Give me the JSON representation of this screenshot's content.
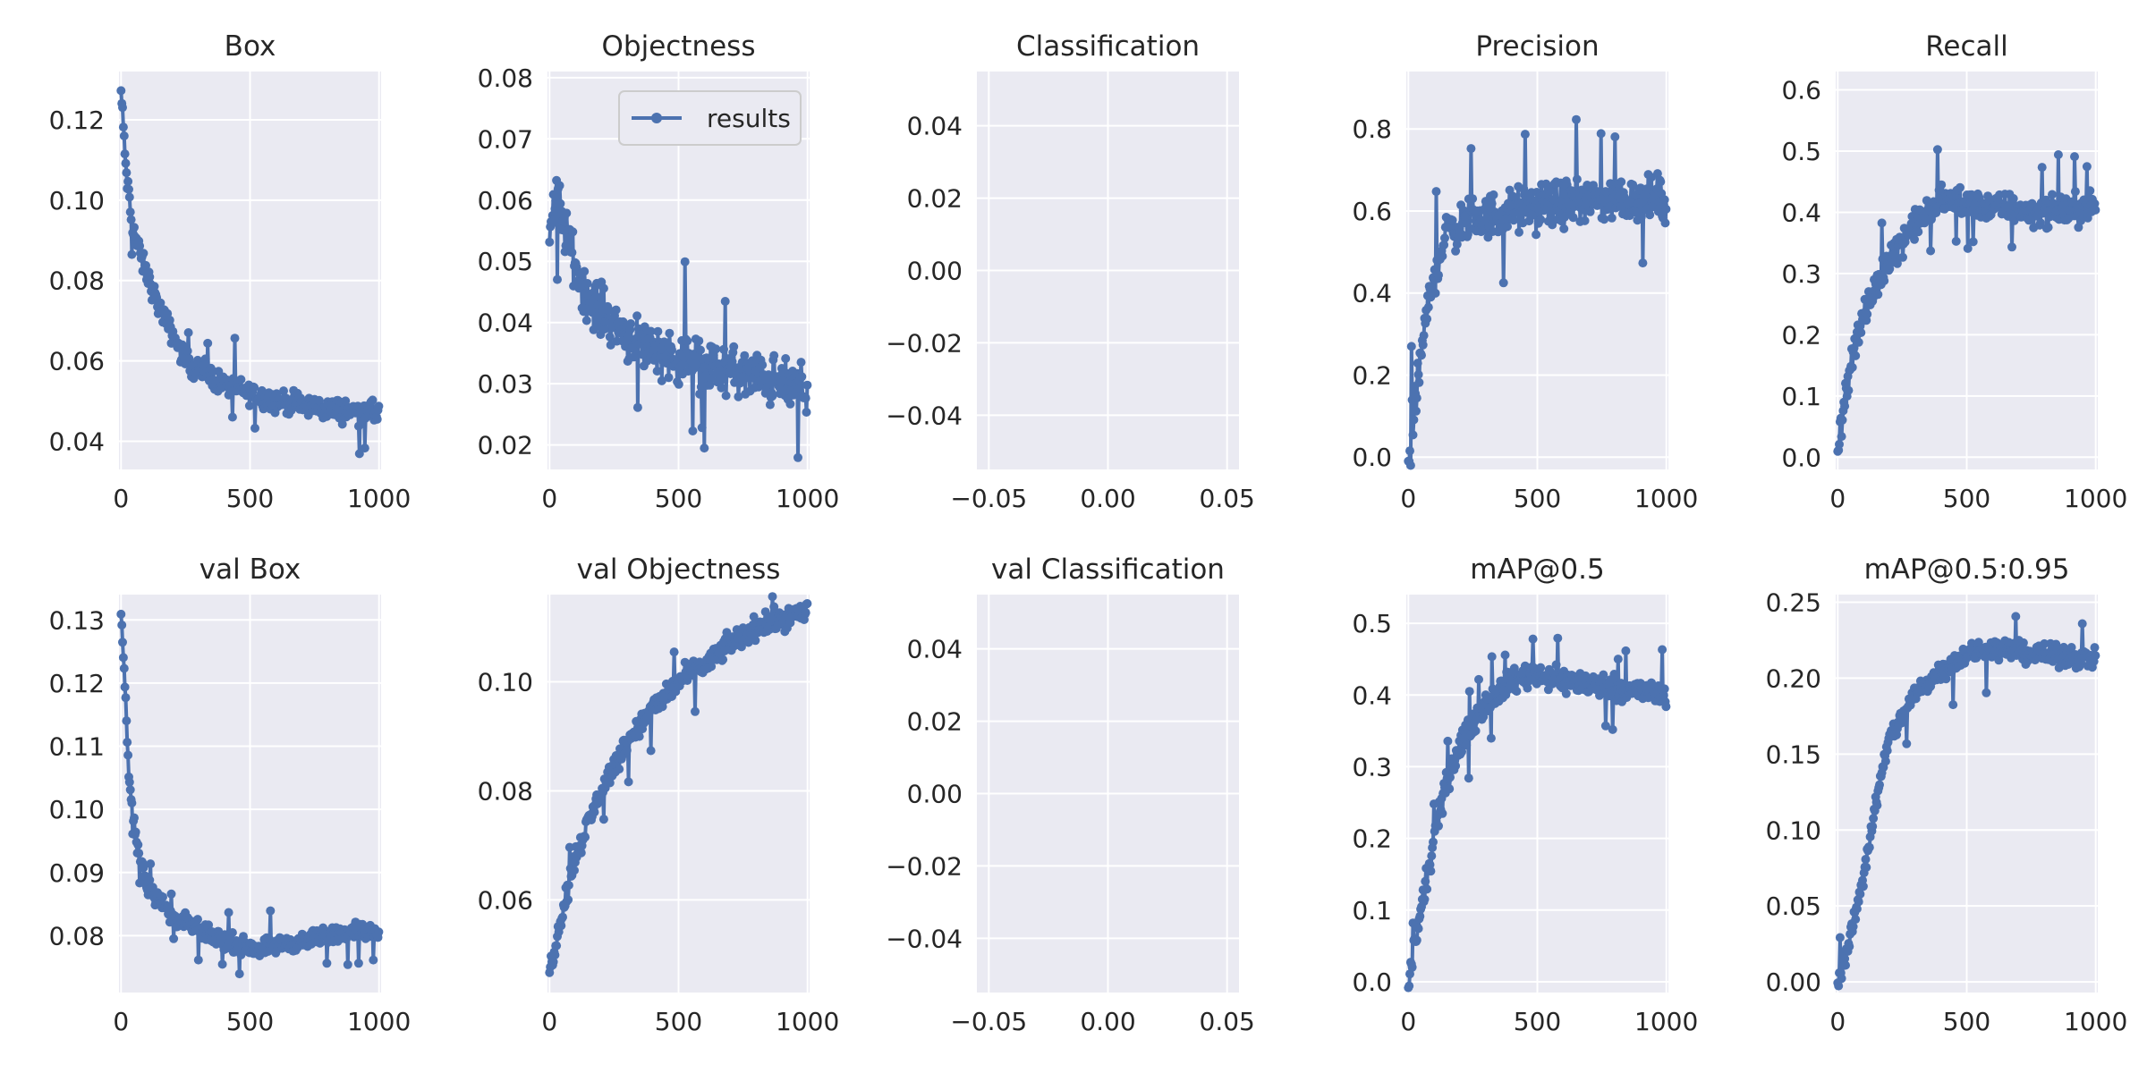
{
  "figure": {
    "background": "#ffffff",
    "axes_facecolor": "#eaeaf2",
    "grid_color": "#ffffff",
    "series_color": "#4c72b0",
    "marker": "circle",
    "grid": true
  },
  "legend": {
    "panel": 1,
    "label": "results",
    "placement": "upper right"
  },
  "chart_data": [
    {
      "type": "line",
      "title": "Box",
      "xlim": [
        -8,
        1008
      ],
      "ylim": [
        0.033,
        0.132
      ],
      "xticks": [
        0,
        500,
        1000
      ],
      "yticks": [
        0.04,
        0.06,
        0.08,
        0.1,
        0.12
      ],
      "xtick_labels": [
        "0",
        "500",
        "1000"
      ],
      "ytick_labels": [
        "0.04",
        "0.06",
        "0.08",
        "0.10",
        "0.12"
      ],
      "series": [
        {
          "trend": [
            [
              0,
              0.127
            ],
            [
              20,
              0.107
            ],
            [
              40,
              0.095
            ],
            [
              80,
              0.085
            ],
            [
              150,
              0.073
            ],
            [
              250,
              0.06
            ],
            [
              400,
              0.054
            ],
            [
              600,
              0.05
            ],
            [
              800,
              0.048
            ],
            [
              1000,
              0.047
            ]
          ],
          "noise": 0.004
        }
      ]
    },
    {
      "type": "line",
      "title": "Objectness",
      "xlim": [
        -8,
        1008
      ],
      "ylim": [
        0.016,
        0.081
      ],
      "xticks": [
        0,
        500,
        1000
      ],
      "yticks": [
        0.02,
        0.03,
        0.04,
        0.05,
        0.06,
        0.07,
        0.08
      ],
      "xtick_labels": [
        "0",
        "500",
        "1000"
      ],
      "ytick_labels": [
        "0.02",
        "0.03",
        "0.04",
        "0.05",
        "0.06",
        "0.07",
        "0.08"
      ],
      "series": [
        {
          "name": "results",
          "trend": [
            [
              0,
              0.055
            ],
            [
              30,
              0.06
            ],
            [
              80,
              0.052
            ],
            [
              150,
              0.044
            ],
            [
              300,
              0.038
            ],
            [
              500,
              0.034
            ],
            [
              700,
              0.032
            ],
            [
              1000,
              0.029
            ]
          ],
          "noise": 0.006
        }
      ]
    },
    {
      "type": "line",
      "title": "Classification",
      "xlim": [
        -0.055,
        0.055
      ],
      "ylim": [
        -0.055,
        0.055
      ],
      "xticks": [
        -0.05,
        0.0,
        0.05
      ],
      "yticks": [
        -0.04,
        -0.02,
        0.0,
        0.02,
        0.04
      ],
      "xtick_labels": [
        "−0.05",
        "0.00",
        "0.05"
      ],
      "ytick_labels": [
        "−0.04",
        "−0.02",
        "0.00",
        "0.02",
        "0.04"
      ],
      "series": []
    },
    {
      "type": "line",
      "title": "Precision",
      "xlim": [
        -8,
        1008
      ],
      "ylim": [
        -0.03,
        0.94
      ],
      "xticks": [
        0,
        500,
        1000
      ],
      "yticks": [
        0.0,
        0.2,
        0.4,
        0.6,
        0.8
      ],
      "xtick_labels": [
        "0",
        "500",
        "1000"
      ],
      "ytick_labels": [
        "0.0",
        "0.2",
        "0.4",
        "0.6",
        "0.8"
      ],
      "series": [
        {
          "trend": [
            [
              0,
              0.0
            ],
            [
              30,
              0.15
            ],
            [
              60,
              0.3
            ],
            [
              100,
              0.45
            ],
            [
              150,
              0.55
            ],
            [
              250,
              0.58
            ],
            [
              400,
              0.6
            ],
            [
              600,
              0.62
            ],
            [
              800,
              0.63
            ],
            [
              1000,
              0.63
            ]
          ],
          "noise": 0.08
        }
      ]
    },
    {
      "type": "line",
      "title": "Recall",
      "xlim": [
        -8,
        1008
      ],
      "ylim": [
        -0.02,
        0.63
      ],
      "xticks": [
        0,
        500,
        1000
      ],
      "yticks": [
        0.0,
        0.1,
        0.2,
        0.3,
        0.4,
        0.5,
        0.6
      ],
      "xtick_labels": [
        "0",
        "500",
        "1000"
      ],
      "ytick_labels": [
        "0.0",
        "0.1",
        "0.2",
        "0.3",
        "0.4",
        "0.5",
        "0.6"
      ],
      "series": [
        {
          "trend": [
            [
              0,
              0.01
            ],
            [
              30,
              0.1
            ],
            [
              60,
              0.18
            ],
            [
              120,
              0.25
            ],
            [
              200,
              0.33
            ],
            [
              300,
              0.38
            ],
            [
              400,
              0.42
            ],
            [
              600,
              0.41
            ],
            [
              800,
              0.4
            ],
            [
              1000,
              0.41
            ]
          ],
          "noise": 0.035
        }
      ]
    },
    {
      "type": "line",
      "title": "val Box",
      "xlim": [
        -8,
        1008
      ],
      "ylim": [
        0.071,
        0.134
      ],
      "xticks": [
        0,
        500,
        1000
      ],
      "yticks": [
        0.08,
        0.09,
        0.1,
        0.11,
        0.12,
        0.13
      ],
      "xtick_labels": [
        "0",
        "500",
        "1000"
      ],
      "ytick_labels": [
        "0.08",
        "0.09",
        "0.10",
        "0.11",
        "0.12",
        "0.13"
      ],
      "series": [
        {
          "trend": [
            [
              0,
              0.131
            ],
            [
              15,
              0.12
            ],
            [
              30,
              0.105
            ],
            [
              60,
              0.095
            ],
            [
              100,
              0.088
            ],
            [
              200,
              0.083
            ],
            [
              350,
              0.08
            ],
            [
              500,
              0.078
            ],
            [
              700,
              0.079
            ],
            [
              900,
              0.081
            ],
            [
              1000,
              0.08
            ]
          ],
          "noise": 0.002
        }
      ]
    },
    {
      "type": "line",
      "title": "val Objectness",
      "xlim": [
        -8,
        1008
      ],
      "ylim": [
        0.043,
        0.116
      ],
      "xticks": [
        0,
        500,
        1000
      ],
      "yticks": [
        0.06,
        0.08,
        0.1
      ],
      "xtick_labels": [
        "0",
        "500",
        "1000"
      ],
      "ytick_labels": [
        "0.06",
        "0.08",
        "0.10"
      ],
      "series": [
        {
          "trend": [
            [
              0,
              0.047
            ],
            [
              50,
              0.058
            ],
            [
              100,
              0.068
            ],
            [
              200,
              0.08
            ],
            [
              300,
              0.089
            ],
            [
              400,
              0.095
            ],
            [
              500,
              0.1
            ],
            [
              600,
              0.103
            ],
            [
              700,
              0.107
            ],
            [
              800,
              0.11
            ],
            [
              1000,
              0.113
            ]
          ],
          "noise": 0.003
        }
      ]
    },
    {
      "type": "line",
      "title": "val Classification",
      "xlim": [
        -0.055,
        0.055
      ],
      "ylim": [
        -0.055,
        0.055
      ],
      "xticks": [
        -0.05,
        0.0,
        0.05
      ],
      "yticks": [
        -0.04,
        -0.02,
        0.0,
        0.02,
        0.04
      ],
      "xtick_labels": [
        "−0.05",
        "0.00",
        "0.05"
      ],
      "ytick_labels": [
        "−0.04",
        "−0.02",
        "0.00",
        "0.02",
        "0.04"
      ],
      "series": []
    },
    {
      "type": "line",
      "title": "mAP@0.5",
      "xlim": [
        -8,
        1008
      ],
      "ylim": [
        -0.015,
        0.54
      ],
      "xticks": [
        0,
        500,
        1000
      ],
      "yticks": [
        0.0,
        0.1,
        0.2,
        0.3,
        0.4,
        0.5
      ],
      "xtick_labels": [
        "0",
        "500",
        "1000"
      ],
      "ytick_labels": [
        "0.0",
        "0.1",
        "0.2",
        "0.3",
        "0.4",
        "0.5"
      ],
      "series": [
        {
          "trend": [
            [
              0,
              0.0
            ],
            [
              50,
              0.1
            ],
            [
              100,
              0.2
            ],
            [
              150,
              0.28
            ],
            [
              200,
              0.33
            ],
            [
              300,
              0.39
            ],
            [
              400,
              0.42
            ],
            [
              500,
              0.43
            ],
            [
              600,
              0.42
            ],
            [
              800,
              0.41
            ],
            [
              1000,
              0.4
            ]
          ],
          "noise": 0.025
        }
      ]
    },
    {
      "type": "line",
      "title": "mAP@0.5:0.95",
      "xlim": [
        -8,
        1008
      ],
      "ylim": [
        -0.007,
        0.255
      ],
      "xticks": [
        0,
        500,
        1000
      ],
      "yticks": [
        0.0,
        0.05,
        0.1,
        0.15,
        0.2,
        0.25
      ],
      "xtick_labels": [
        "0",
        "500",
        "1000"
      ],
      "ytick_labels": [
        "0.00",
        "0.05",
        "0.10",
        "0.15",
        "0.20",
        "0.25"
      ],
      "series": [
        {
          "trend": [
            [
              0,
              0.0
            ],
            [
              50,
              0.03
            ],
            [
              100,
              0.07
            ],
            [
              150,
              0.12
            ],
            [
              200,
              0.16
            ],
            [
              300,
              0.19
            ],
            [
              400,
              0.205
            ],
            [
              500,
              0.215
            ],
            [
              600,
              0.22
            ],
            [
              800,
              0.215
            ],
            [
              1000,
              0.213
            ]
          ],
          "noise": 0.01
        }
      ]
    }
  ]
}
